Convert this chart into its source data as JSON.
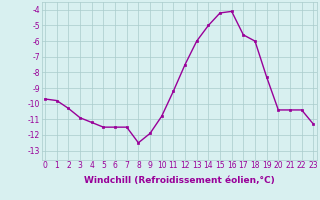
{
  "x": [
    0,
    1,
    2,
    3,
    4,
    5,
    6,
    7,
    8,
    9,
    10,
    11,
    12,
    13,
    14,
    15,
    16,
    17,
    18,
    19,
    20,
    21,
    22,
    23
  ],
  "y": [
    -9.7,
    -9.8,
    -10.3,
    -10.9,
    -11.2,
    -11.5,
    -11.5,
    -11.5,
    -12.5,
    -11.9,
    -10.8,
    -9.2,
    -7.5,
    -6.0,
    -5.0,
    -4.2,
    -4.1,
    -5.6,
    -6.0,
    -8.3,
    -10.4,
    -10.4,
    -10.4,
    -11.3
  ],
  "line_color": "#990099",
  "marker": "s",
  "marker_size": 2,
  "line_width": 1.0,
  "xlabel": "Windchill (Refroidissement éolien,°C)",
  "xlabel_fontsize": 6.5,
  "xtick_labels": [
    "0",
    "1",
    "2",
    "3",
    "4",
    "5",
    "6",
    "7",
    "8",
    "9",
    "10",
    "11",
    "12",
    "13",
    "14",
    "15",
    "16",
    "17",
    "18",
    "19",
    "20",
    "21",
    "22",
    "23"
  ],
  "ytick_labels": [
    "-4",
    "-5",
    "-6",
    "-7",
    "-8",
    "-9",
    "-10",
    "-11",
    "-12",
    "-13"
  ],
  "ytick_vals": [
    -4,
    -5,
    -6,
    -7,
    -8,
    -9,
    -10,
    -11,
    -12,
    -13
  ],
  "ylim": [
    -13.6,
    -3.5
  ],
  "xlim": [
    -0.3,
    23.3
  ],
  "grid_color": "#aacccc",
  "bg_color": "#d8f0f0",
  "tick_color": "#990099",
  "tick_fontsize": 5.5,
  "xlabel_bold": true
}
